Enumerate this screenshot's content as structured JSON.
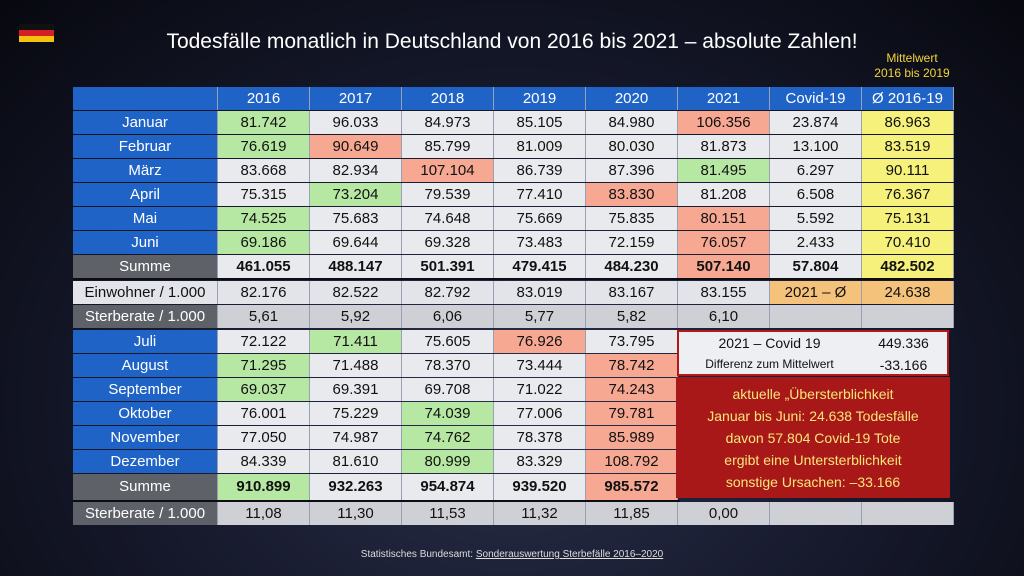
{
  "title": "Todesfälle monatlich in Deutschland von 2016 bis 2021 – absolute Zahlen!",
  "flag_colors": [
    "#111111",
    "#d31f25",
    "#f4c20d"
  ],
  "mean_note": [
    "Mittelwert",
    "2016 bis 2019"
  ],
  "columns": [
    "2016",
    "2017",
    "2018",
    "2019",
    "2020",
    "2021",
    "Covid-19",
    "Ø 2016-19"
  ],
  "first_half": [
    {
      "label": "Januar",
      "values": [
        "81.742",
        "96.033",
        "84.973",
        "85.105",
        "84.980",
        "106.356",
        "23.874",
        "86.963"
      ]
    },
    {
      "label": "Februar",
      "values": [
        "76.619",
        "90.649",
        "85.799",
        "81.009",
        "80.030",
        "81.873",
        "13.100",
        "83.519"
      ]
    },
    {
      "label": "März",
      "values": [
        "83.668",
        "82.934",
        "107.104",
        "86.739",
        "87.396",
        "81.495",
        "6.297",
        "90.111"
      ]
    },
    {
      "label": "April",
      "values": [
        "75.315",
        "73.204",
        "79.539",
        "77.410",
        "83.830",
        "81.208",
        "6.508",
        "76.367"
      ]
    },
    {
      "label": "Mai",
      "values": [
        "74.525",
        "75.683",
        "74.648",
        "75.669",
        "75.835",
        "80.151",
        "5.592",
        "75.131"
      ]
    },
    {
      "label": "Juni",
      "values": [
        "69.186",
        "69.644",
        "69.328",
        "73.483",
        "72.159",
        "76.057",
        "2.433",
        "70.410"
      ]
    }
  ],
  "summe1": {
    "label": "Summe",
    "values": [
      "461.055",
      "488.147",
      "501.391",
      "479.415",
      "484.230",
      "507.140",
      "57.804",
      "482.502"
    ]
  },
  "einwohner": {
    "label": "Einwohner / 1.000",
    "values": [
      "82.176",
      "82.522",
      "82.792",
      "83.019",
      "83.167",
      "83.155",
      "2021 – Ø",
      "24.638"
    ]
  },
  "sterberate1": {
    "label": "Sterberate / 1.000",
    "values": [
      "5,61",
      "5,92",
      "6,06",
      "5,77",
      "5,82",
      "6,10",
      "",
      ""
    ]
  },
  "second_half": [
    {
      "label": "Juli",
      "values": [
        "72.122",
        "71.411",
        "75.605",
        "76.926",
        "73.795"
      ]
    },
    {
      "label": "August",
      "values": [
        "71.295",
        "71.488",
        "78.370",
        "73.444",
        "78.742"
      ]
    },
    {
      "label": "September",
      "values": [
        "69.037",
        "69.391",
        "69.708",
        "71.022",
        "74.243"
      ]
    },
    {
      "label": "Oktober",
      "values": [
        "76.001",
        "75.229",
        "74.039",
        "77.006",
        "79.781"
      ]
    },
    {
      "label": "November",
      "values": [
        "77.050",
        "74.987",
        "74.762",
        "78.378",
        "85.989"
      ]
    },
    {
      "label": "Dezember",
      "values": [
        "84.339",
        "81.610",
        "80.999",
        "83.329",
        "108.792"
      ]
    }
  ],
  "summe2": {
    "label": "Summe",
    "values": [
      "910.899",
      "932.263",
      "954.874",
      "939.520",
      "985.572"
    ]
  },
  "sterberate2": {
    "label": "Sterberate / 1.000",
    "values": [
      "11,08",
      "11,30",
      "11,53",
      "11,32",
      "11,85",
      "0,00",
      "",
      ""
    ]
  },
  "covid_box": {
    "row1_label": "2021 – Covid 19",
    "row1_value": "449.336",
    "row2_label": "Differenz zum Mittelwert",
    "row2_value": "-33.166"
  },
  "note_lines": [
    "aktuelle „Übersterblichkeit",
    "Januar bis Juni: 24.638 Todesfälle",
    "davon 57.804 Covid-19 Tote",
    "ergibt eine Untersterblichkeit",
    "sonstige Ursachen: –33.166"
  ],
  "footer": {
    "prefix": "Statistisches Bundesamt: ",
    "link": "Sonderauswertung Sterbefälle 2016–2020"
  }
}
